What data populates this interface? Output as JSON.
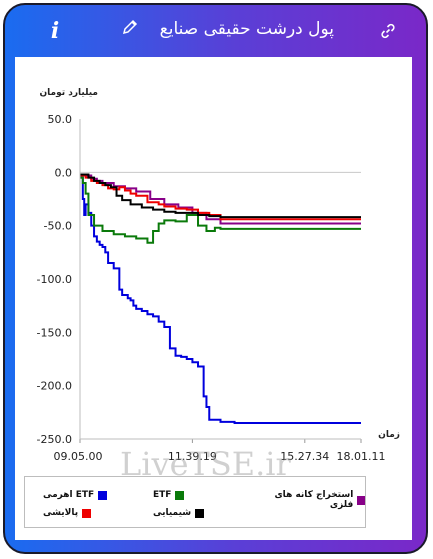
{
  "header": {
    "title": "پول درشت حقیقی صنایع",
    "info_icon": "i",
    "edit_icon": "pencil-icon",
    "link_icon": "link-icon"
  },
  "watermark": "LiveTSE.ir",
  "chart_data": {
    "type": "line",
    "ylabel": "میلیارد تومان",
    "xlabel": "زمان",
    "ylim": [
      -250,
      50
    ],
    "yticks": [
      "50.0",
      "0.0",
      "-50.0",
      "-100.0",
      "-150.0",
      "-200.0",
      "-250.0"
    ],
    "ytick_values": [
      50,
      0,
      -50,
      -100,
      -150,
      -200,
      -250
    ],
    "xticks": [
      "09.05.00",
      "11.39.19",
      "15.27.34",
      "18.01.11"
    ],
    "xtick_values": [
      0,
      0.4,
      0.8,
      1.0
    ],
    "legend_placement": "bottom",
    "series": [
      {
        "name": "ETF اهرمی",
        "color": "#0000dd",
        "points": [
          [
            0,
            -2
          ],
          [
            0.005,
            -5
          ],
          [
            0.01,
            -25
          ],
          [
            0.015,
            -40
          ],
          [
            0.02,
            -30
          ],
          [
            0.03,
            -38
          ],
          [
            0.04,
            -50
          ],
          [
            0.05,
            -60
          ],
          [
            0.06,
            -65
          ],
          [
            0.07,
            -68
          ],
          [
            0.08,
            -70
          ],
          [
            0.09,
            -75
          ],
          [
            0.1,
            -85
          ],
          [
            0.12,
            -90
          ],
          [
            0.14,
            -110
          ],
          [
            0.15,
            -115
          ],
          [
            0.17,
            -118
          ],
          [
            0.18,
            -120
          ],
          [
            0.19,
            -125
          ],
          [
            0.2,
            -128
          ],
          [
            0.22,
            -130
          ],
          [
            0.24,
            -133
          ],
          [
            0.26,
            -135
          ],
          [
            0.28,
            -140
          ],
          [
            0.3,
            -145
          ],
          [
            0.32,
            -165
          ],
          [
            0.34,
            -172
          ],
          [
            0.36,
            -173
          ],
          [
            0.38,
            -175
          ],
          [
            0.4,
            -178
          ],
          [
            0.42,
            -182
          ],
          [
            0.44,
            -210
          ],
          [
            0.45,
            -220
          ],
          [
            0.46,
            -232
          ],
          [
            0.5,
            -234
          ],
          [
            0.55,
            -235
          ],
          [
            0.7,
            -235
          ],
          [
            1.0,
            -235
          ]
        ]
      },
      {
        "name": "ETF",
        "color": "#0a7a0a",
        "points": [
          [
            0,
            -5
          ],
          [
            0.01,
            -10
          ],
          [
            0.02,
            -20
          ],
          [
            0.03,
            -40
          ],
          [
            0.05,
            -50
          ],
          [
            0.08,
            -55
          ],
          [
            0.12,
            -58
          ],
          [
            0.16,
            -60
          ],
          [
            0.2,
            -62
          ],
          [
            0.24,
            -66
          ],
          [
            0.26,
            -55
          ],
          [
            0.28,
            -48
          ],
          [
            0.3,
            -45
          ],
          [
            0.34,
            -46
          ],
          [
            0.38,
            -40
          ],
          [
            0.42,
            -50
          ],
          [
            0.45,
            -55
          ],
          [
            0.48,
            -52
          ],
          [
            0.5,
            -53
          ],
          [
            0.55,
            -53
          ],
          [
            0.7,
            -53
          ],
          [
            1.0,
            -53
          ]
        ]
      },
      {
        "name": "استخراج کانه های فلزی",
        "color": "#880088",
        "points": [
          [
            0,
            -2
          ],
          [
            0.02,
            -3
          ],
          [
            0.04,
            -6
          ],
          [
            0.06,
            -8
          ],
          [
            0.08,
            -10
          ],
          [
            0.12,
            -13
          ],
          [
            0.16,
            -15
          ],
          [
            0.2,
            -18
          ],
          [
            0.25,
            -25
          ],
          [
            0.3,
            -30
          ],
          [
            0.35,
            -33
          ],
          [
            0.4,
            -38
          ],
          [
            0.45,
            -44
          ],
          [
            0.5,
            -48
          ],
          [
            0.7,
            -48
          ],
          [
            1.0,
            -48
          ]
        ]
      },
      {
        "name": "پالایشی",
        "color": "#ee0000",
        "points": [
          [
            0,
            -3
          ],
          [
            0.02,
            -5
          ],
          [
            0.04,
            -8
          ],
          [
            0.06,
            -10
          ],
          [
            0.08,
            -12
          ],
          [
            0.1,
            -15
          ],
          [
            0.12,
            -16
          ],
          [
            0.14,
            -14
          ],
          [
            0.16,
            -17
          ],
          [
            0.18,
            -20
          ],
          [
            0.2,
            -22
          ],
          [
            0.24,
            -28
          ],
          [
            0.28,
            -30
          ],
          [
            0.3,
            -32
          ],
          [
            0.34,
            -34
          ],
          [
            0.38,
            -35
          ],
          [
            0.42,
            -38
          ],
          [
            0.46,
            -40
          ],
          [
            0.5,
            -44
          ],
          [
            0.7,
            -44
          ],
          [
            1.0,
            -44
          ]
        ]
      },
      {
        "name": "شیمیایی",
        "color": "#000000",
        "points": [
          [
            0,
            -2
          ],
          [
            0.03,
            -5
          ],
          [
            0.05,
            -8
          ],
          [
            0.07,
            -10
          ],
          [
            0.09,
            -12
          ],
          [
            0.11,
            -14
          ],
          [
            0.13,
            -22
          ],
          [
            0.15,
            -26
          ],
          [
            0.18,
            -30
          ],
          [
            0.22,
            -33
          ],
          [
            0.26,
            -35
          ],
          [
            0.3,
            -37
          ],
          [
            0.34,
            -38
          ],
          [
            0.38,
            -38
          ],
          [
            0.42,
            -40
          ],
          [
            0.46,
            -41
          ],
          [
            0.5,
            -42
          ],
          [
            0.7,
            -42
          ],
          [
            1.0,
            -42
          ]
        ]
      }
    ]
  }
}
